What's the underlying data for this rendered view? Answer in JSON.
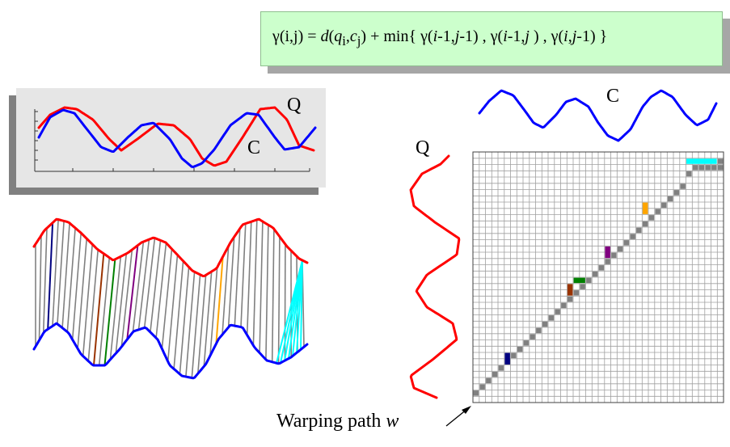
{
  "formula": {
    "lhs": "γ(i,j)",
    "eq": " = ",
    "d": "d",
    "q": "q",
    "qsub": "i",
    "c": "c",
    "csub": "j",
    "plus_min": ") + min{ ",
    "g1": "γ(",
    "g1i": "i",
    "g1m": "-1,",
    "g1j": "j",
    "g1e": "-1) , ",
    "g2": "γ(",
    "g2i": "i",
    "g2m": "-1,",
    "g2j": "j",
    "g2e": " ) , ",
    "g3": "γ(",
    "g3i": "i",
    "g3c": ",",
    "g3j": "j",
    "g3e": "-1) }"
  },
  "labels": {
    "top_q": "Q",
    "top_c": "C",
    "right_c": "C",
    "right_q": "Q",
    "warping_path": "Warping path ",
    "warping_w": "w"
  },
  "colors": {
    "q_series": "#ff0000",
    "c_series": "#0000ff",
    "grid_line": "#a0a0a0",
    "path_cell": "#808080",
    "highlights": [
      "#000080",
      "#993300",
      "#008000",
      "#800080",
      "#ffa500",
      "#00ffff"
    ]
  }
}
